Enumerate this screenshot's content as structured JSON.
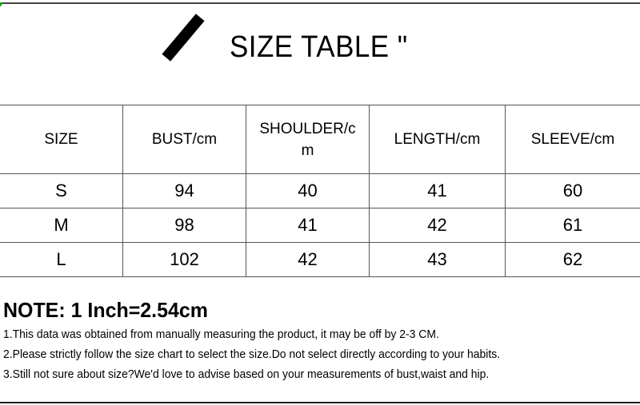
{
  "title": "SIZE TABLE \"",
  "table": {
    "headers": [
      "SIZE",
      "BUST/cm",
      "SHOULDER/c\nm",
      "LENGTH/cm",
      "SLEEVE/cm"
    ],
    "rows": [
      [
        "S",
        "94",
        "40",
        "41",
        "60"
      ],
      [
        "M",
        "98",
        "41",
        "42",
        "61"
      ],
      [
        "L",
        "102",
        "42",
        "43",
        "62"
      ]
    ]
  },
  "note": {
    "heading": "NOTE: 1 Inch=2.54cm",
    "lines": [
      "1.This data was obtained from manually measuring the product, it may be off by 2-3 CM.",
      "2.Please strictly follow the size chart to select the size.Do not select directly according to your habits.",
      "3.Still not sure about size?We'd love to advise based on your measurements of bust,waist and hip."
    ]
  }
}
